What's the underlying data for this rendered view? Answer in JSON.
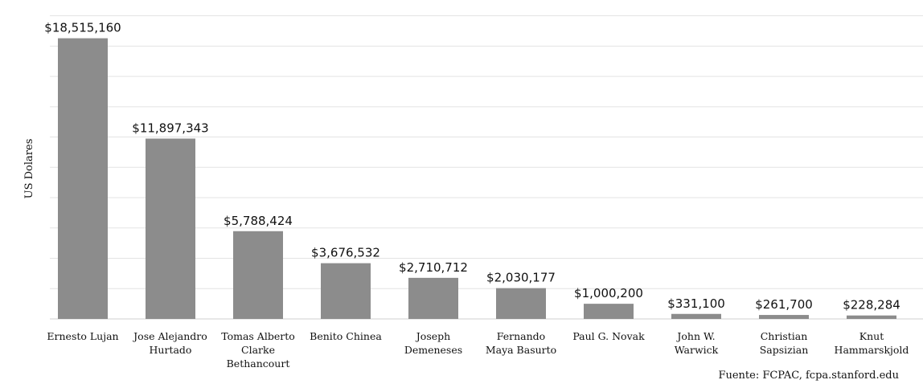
{
  "chart_data": {
    "type": "bar",
    "categories": [
      [
        "Ernesto Lujan"
      ],
      [
        "Jose Alejandro",
        "Hurtado"
      ],
      [
        "Tomas Alberto",
        "Clarke",
        "Bethancourt"
      ],
      [
        "Benito Chinea"
      ],
      [
        "Joseph",
        "Demeneses"
      ],
      [
        "Fernando",
        "Maya Basurto"
      ],
      [
        "Paul G. Novak"
      ],
      [
        "John W.",
        "Warwick"
      ],
      [
        "Christian",
        "Sapsizian"
      ],
      [
        "Knut",
        "Hammarskjold"
      ]
    ],
    "values": [
      18515160,
      11897343,
      5788424,
      3676532,
      2710712,
      2030177,
      1000200,
      331100,
      261700,
      228284
    ],
    "value_labels": [
      "$18,515,160",
      "$11,897,343",
      "$5,788,424",
      "$3,676,532",
      "$2,710,712",
      "$2,030,177",
      "$1,000,200",
      "$331,100",
      "$261,700",
      "$228,284"
    ],
    "title": "",
    "xlabel": "",
    "ylabel": "US Dolares",
    "ylim": [
      0,
      20000000
    ],
    "y_gridlines": 10,
    "grid": true,
    "legend": "none",
    "bar_color": "#8c8c8c",
    "grid_color": "#e3e3e3",
    "source": "Fuente: FCPAC, fcpa.stanford.edu"
  }
}
